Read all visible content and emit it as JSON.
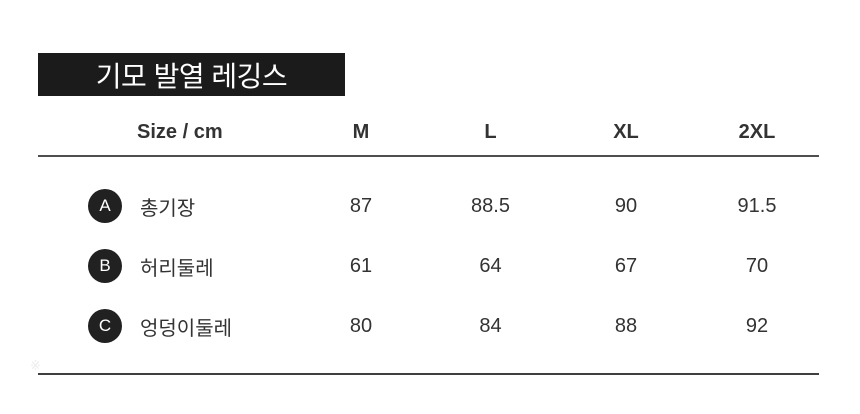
{
  "title": "기모 발열 레깅스",
  "table": {
    "header": [
      "Size / cm",
      "M",
      "L",
      "XL",
      "2XL"
    ],
    "rows": [
      {
        "key": "A",
        "label": "총기장",
        "values": [
          "87",
          "88.5",
          "90",
          "91.5"
        ]
      },
      {
        "key": "B",
        "label": "허리둘레",
        "values": [
          "61",
          "64",
          "67",
          "70"
        ]
      },
      {
        "key": "C",
        "label": "엉덩이둘레",
        "values": [
          "80",
          "84",
          "88",
          "92"
        ]
      }
    ]
  },
  "footnote_mark": "※",
  "colors": {
    "banner_background": "#1b1b1b",
    "banner_text": "#ffffff",
    "table_text": "#333333",
    "badge_background": "#212121",
    "badge_text": "#ffffff",
    "header_rule": "#4f4f4f",
    "bottom_rule": "#3f3f3f",
    "page_background": "#ffffff"
  }
}
